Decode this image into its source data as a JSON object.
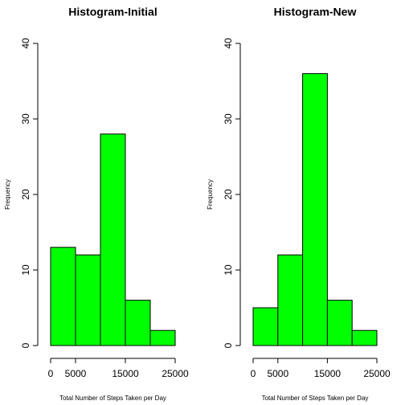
{
  "chart_data": [
    {
      "type": "histogram",
      "title": "Histogram-Initial",
      "x_label": "Total Number of Steps Taken per Day",
      "y_label": "Frequency",
      "bins": [
        0,
        5000,
        10000,
        15000,
        20000,
        25000
      ],
      "values": [
        13,
        12,
        28,
        6,
        2
      ],
      "color": "#00ff00",
      "xlim": [
        0,
        25000
      ],
      "xticks": [
        0,
        5000,
        15000,
        25000
      ],
      "ylim": [
        0,
        40
      ],
      "yticks": [
        0,
        10,
        20,
        30,
        40
      ]
    },
    {
      "type": "histogram",
      "title": "Histogram-New",
      "x_label": "Total Number of Steps Taken per Day",
      "y_label": "Frequency",
      "bins": [
        0,
        5000,
        10000,
        15000,
        20000,
        25000
      ],
      "values": [
        5,
        12,
        36,
        6,
        2
      ],
      "color": "#00ff00",
      "xlim": [
        0,
        25000
      ],
      "xticks": [
        0,
        5000,
        15000,
        25000
      ],
      "ylim": [
        0,
        40
      ],
      "yticks": [
        0,
        10,
        20,
        30,
        40
      ]
    }
  ]
}
